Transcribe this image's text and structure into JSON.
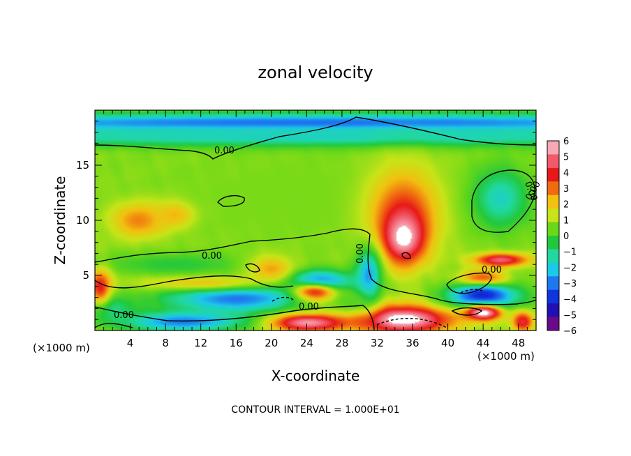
{
  "chart_data": {
    "type": "heatmap",
    "title": "zonal velocity",
    "xlabel": "X-coordinate",
    "ylabel": "Z-coordinate",
    "x_unit_label": "(×1000 m)",
    "x_unit_label_right": "(×1000 m)",
    "xlim": [
      0,
      50
    ],
    "ylim": [
      0,
      20
    ],
    "xticks": [
      4,
      8,
      12,
      16,
      20,
      24,
      28,
      32,
      36,
      40,
      44,
      48
    ],
    "yticks": [
      5,
      10,
      15
    ],
    "contour_interval_text": "CONTOUR INTERVAL = 1.000E+01",
    "colorbar": {
      "ticks": [
        6,
        5,
        4,
        3,
        2,
        1,
        0,
        -1,
        -2,
        -3,
        -4,
        -5,
        -6
      ],
      "range": [
        -6,
        6
      ],
      "colors": [
        "#6a0a8a",
        "#2010b4",
        "#1034e0",
        "#1e78f0",
        "#1cc8e8",
        "#20d8a0",
        "#22c83c",
        "#6ad818",
        "#c8e418",
        "#f2c010",
        "#f06a10",
        "#e81818",
        "#f05a6a",
        "#f8a8b4"
      ]
    },
    "contour_labels": [
      "0.00",
      "0.00",
      "0.00",
      "0.00",
      "0.00",
      "0.00",
      "0.00",
      "0.00"
    ],
    "regions": [
      {
        "x": 26,
        "z": 12,
        "value": 0.6,
        "sx": 30,
        "sz": 6
      },
      {
        "x": 25,
        "z": 18.8,
        "value": -3.6,
        "sx": 60,
        "sz": 0.9
      },
      {
        "x": 25,
        "z": 17.6,
        "value": -1.8,
        "sx": 60,
        "sz": 0.9
      },
      {
        "x": 5,
        "z": 10,
        "value": 3.0,
        "sx": 3.2,
        "sz": 1.6
      },
      {
        "x": 9,
        "z": 10.5,
        "value": 2.4,
        "sx": 2.2,
        "sz": 1.2
      },
      {
        "x": 35,
        "z": 10.5,
        "value": 3.8,
        "sx": 4.0,
        "sz": 4.2
      },
      {
        "x": 35,
        "z": 8.5,
        "value": 6.5,
        "sx": 2.2,
        "sz": 2.2
      },
      {
        "x": 46,
        "z": 12,
        "value": -1.8,
        "sx": 3.0,
        "sz": 2.6
      },
      {
        "x": 25,
        "z": 4.2,
        "value": -5.2,
        "sx": 4.0,
        "sz": 1.1
      },
      {
        "x": 24.5,
        "z": 3.4,
        "value": 6.6,
        "sx": 3.2,
        "sz": 0.9
      },
      {
        "x": 16,
        "z": 3.0,
        "value": -3.4,
        "sx": 8.0,
        "sz": 1.4
      },
      {
        "x": 12,
        "z": 4.4,
        "value": 2.2,
        "sx": 8.0,
        "sz": 0.8
      },
      {
        "x": 9,
        "z": 6.0,
        "value": -0.4,
        "sx": 8.0,
        "sz": 1.0
      },
      {
        "x": 20,
        "z": 5.6,
        "value": 2.6,
        "sx": 2.6,
        "sz": 1.2
      },
      {
        "x": 35,
        "z": 1.0,
        "value": 6.6,
        "sx": 5.5,
        "sz": 1.3
      },
      {
        "x": 24,
        "z": 0.7,
        "value": 6.0,
        "sx": 4.5,
        "sz": 0.8
      },
      {
        "x": 10,
        "z": 0.8,
        "value": -3.2,
        "sx": 7.0,
        "sz": 0.9
      },
      {
        "x": 2,
        "z": 2.0,
        "value": -1.2,
        "sx": 2.5,
        "sz": 1.2
      },
      {
        "x": 0.6,
        "z": 4.0,
        "value": 4.2,
        "sx": 1.2,
        "sz": 1.5
      },
      {
        "x": 44,
        "z": 4.4,
        "value": 6.6,
        "sx": 2.6,
        "sz": 0.9
      },
      {
        "x": 44,
        "z": 3.2,
        "value": -4.6,
        "sx": 4.0,
        "sz": 1.3
      },
      {
        "x": 44,
        "z": 1.6,
        "value": 6.5,
        "sx": 2.2,
        "sz": 0.7
      },
      {
        "x": 46,
        "z": 6.4,
        "value": 5.2,
        "sx": 3.0,
        "sz": 0.6
      },
      {
        "x": 31,
        "z": 5.0,
        "value": -2.8,
        "sx": 1.4,
        "sz": 2.4
      },
      {
        "x": 29,
        "z": 2.6,
        "value": 0.2,
        "sx": 2.0,
        "sz": 1.0
      },
      {
        "x": 48.5,
        "z": 0.8,
        "value": 4.5,
        "sx": 1.2,
        "sz": 0.9
      }
    ]
  }
}
